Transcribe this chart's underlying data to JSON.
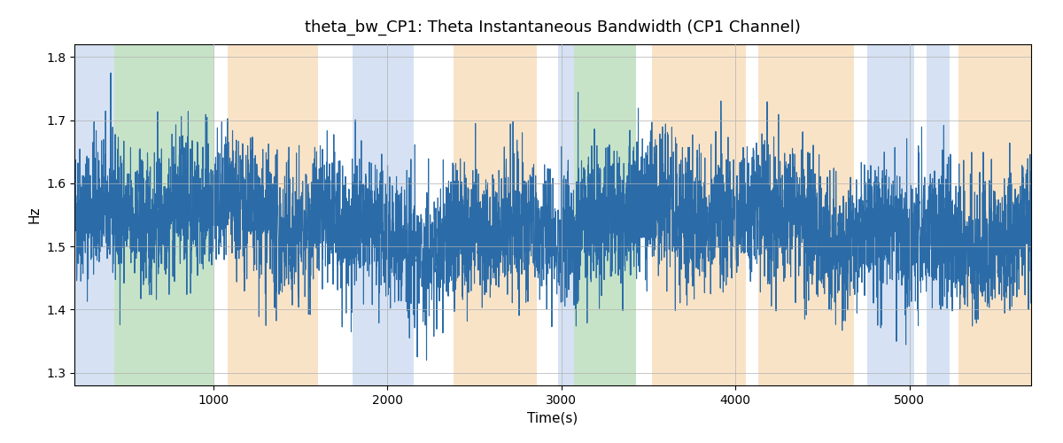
{
  "title": "theta_bw_CP1: Theta Instantaneous Bandwidth (CP1 Channel)",
  "xlabel": "Time(s)",
  "ylabel": "Hz",
  "ylim": [
    1.28,
    1.82
  ],
  "xlim": [
    200,
    5700
  ],
  "line_color": "#2b6ca8",
  "line_width": 0.8,
  "bg_color": "#ffffff",
  "grid_color": "#b0b0b0",
  "regions": [
    {
      "xmin": 200,
      "xmax": 430,
      "color": "#aec6e8",
      "alpha": 0.5
    },
    {
      "xmin": 430,
      "xmax": 1000,
      "color": "#90c990",
      "alpha": 0.5
    },
    {
      "xmin": 1080,
      "xmax": 1600,
      "color": "#f5c990",
      "alpha": 0.5
    },
    {
      "xmin": 1800,
      "xmax": 2150,
      "color": "#aec6e8",
      "alpha": 0.5
    },
    {
      "xmin": 2380,
      "xmax": 2860,
      "color": "#f5c990",
      "alpha": 0.5
    },
    {
      "xmin": 2980,
      "xmax": 3070,
      "color": "#aec6e8",
      "alpha": 0.5
    },
    {
      "xmin": 3070,
      "xmax": 3430,
      "color": "#90c990",
      "alpha": 0.5
    },
    {
      "xmin": 3520,
      "xmax": 4060,
      "color": "#f5c990",
      "alpha": 0.5
    },
    {
      "xmin": 4130,
      "xmax": 4680,
      "color": "#f5c990",
      "alpha": 0.5
    },
    {
      "xmin": 4760,
      "xmax": 5030,
      "color": "#aec6e8",
      "alpha": 0.5
    },
    {
      "xmin": 5100,
      "xmax": 5230,
      "color": "#aec6e8",
      "alpha": 0.5
    },
    {
      "xmin": 5280,
      "xmax": 5700,
      "color": "#f5c990",
      "alpha": 0.5
    }
  ],
  "seed": 42,
  "n_points": 5500,
  "mean": 1.535,
  "std": 0.055
}
